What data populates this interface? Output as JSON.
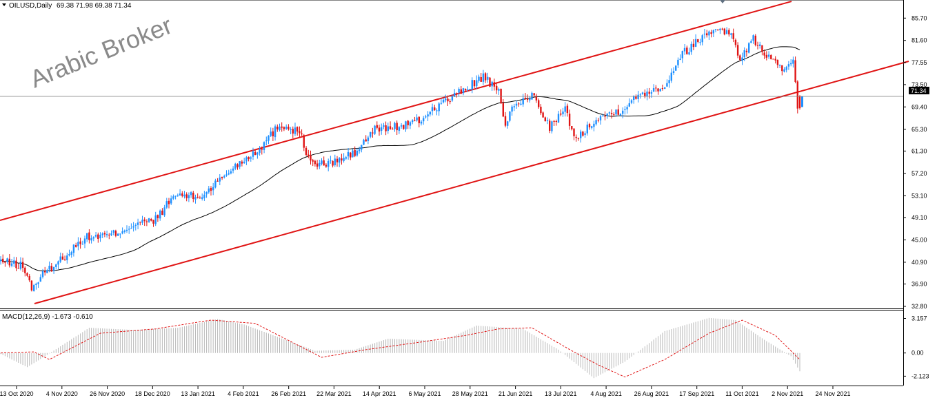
{
  "chart_data": [
    {
      "type": "candlestick",
      "symbol": "OILUSD,Daily",
      "ohlc_header": "69.38 71.98 69.38 71.34",
      "watermark": "Arabic Broker",
      "ylim": [
        32.8,
        87.0
      ],
      "y_ticks": [
        "85.70",
        "81.60",
        "77.55",
        "73.50",
        "69.40",
        "65.30",
        "61.30",
        "57.20",
        "53.10",
        "49.10",
        "45.00",
        "40.90",
        "36.90",
        "32.80"
      ],
      "x_ticks": [
        "13 Oct 2020",
        "4 Nov 2020",
        "26 Nov 2020",
        "18 Dec 2020",
        "13 Jan 2021",
        "4 Feb 2021",
        "26 Feb 2021",
        "22 Mar 2021",
        "14 Apr 2021",
        "6 May 2021",
        "28 May 2021",
        "21 Jun 2021",
        "13 Jul 2021",
        "4 Aug 2021",
        "26 Aug 2021",
        "17 Sep 2021",
        "11 Oct 2021",
        "2 Nov 2021",
        "24 Nov 2021"
      ],
      "current_price": "71.34",
      "current_price_value": 71.34,
      "close_path": [
        [
          0,
          41.1
        ],
        [
          10,
          40.2
        ],
        [
          14,
          36.2
        ],
        [
          20,
          39.0
        ],
        [
          25,
          40.6
        ],
        [
          38,
          45.4
        ],
        [
          50,
          45.9
        ],
        [
          62,
          48.1
        ],
        [
          69,
          48.4
        ],
        [
          79,
          53.3
        ],
        [
          90,
          52.8
        ],
        [
          106,
          58.6
        ],
        [
          117,
          61.8
        ],
        [
          126,
          66.2
        ],
        [
          135,
          64.8
        ],
        [
          140,
          59.0
        ],
        [
          148,
          58.9
        ],
        [
          160,
          60.9
        ],
        [
          169,
          65.3
        ],
        [
          180,
          65.8
        ],
        [
          189,
          66.8
        ],
        [
          196,
          69.3
        ],
        [
          205,
          71.4
        ],
        [
          218,
          75.0
        ],
        [
          225,
          71.9
        ],
        [
          228,
          66.5
        ],
        [
          232,
          69.4
        ],
        [
          240,
          71.7
        ],
        [
          248,
          65.8
        ],
        [
          255,
          68.8
        ],
        [
          260,
          63.3
        ],
        [
          268,
          67.1
        ],
        [
          280,
          68.9
        ],
        [
          290,
          72.0
        ],
        [
          300,
          73.3
        ],
        [
          307,
          78.8
        ],
        [
          318,
          82.6
        ],
        [
          325,
          84.1
        ],
        [
          330,
          82.5
        ],
        [
          334,
          78.3
        ],
        [
          340,
          81.8
        ],
        [
          346,
          79.0
        ],
        [
          350,
          77.3
        ],
        [
          355,
          76.2
        ],
        [
          358,
          77.6
        ],
        [
          360,
          69.1
        ],
        [
          361,
          71.34
        ]
      ],
      "macd": {
        "label": "MACD(12,26,9) -1.673 -0.610",
        "ylim": [
          -2.6,
          3.5
        ],
        "y_ticks": [
          "3.157",
          "0.00",
          "-2.123"
        ],
        "hist_path": [
          [
            0,
            -0.1
          ],
          [
            12,
            -1.3
          ],
          [
            20,
            -0.3
          ],
          [
            40,
            2.3
          ],
          [
            60,
            2.1
          ],
          [
            80,
            2.3
          ],
          [
            98,
            3.1
          ],
          [
            110,
            2.6
          ],
          [
            142,
            0.2
          ],
          [
            160,
            0.3
          ],
          [
            175,
            1.3
          ],
          [
            200,
            1.1
          ],
          [
            215,
            2.5
          ],
          [
            236,
            2.2
          ],
          [
            252,
            0.3
          ],
          [
            268,
            -2.3
          ],
          [
            282,
            -0.8
          ],
          [
            300,
            2.0
          ],
          [
            320,
            3.2
          ],
          [
            332,
            3.0
          ],
          [
            345,
            1.2
          ],
          [
            357,
            -0.3
          ],
          [
            361,
            -1.673
          ]
        ],
        "signal_path": [
          [
            0,
            0.0
          ],
          [
            15,
            0.1
          ],
          [
            22,
            -0.6
          ],
          [
            45,
            1.8
          ],
          [
            70,
            2.2
          ],
          [
            95,
            3.0
          ],
          [
            115,
            2.7
          ],
          [
            145,
            -0.4
          ],
          [
            165,
            0.3
          ],
          [
            190,
            1.0
          ],
          [
            210,
            1.6
          ],
          [
            225,
            2.2
          ],
          [
            240,
            2.3
          ],
          [
            258,
            0.2
          ],
          [
            270,
            -1.1
          ],
          [
            282,
            -2.2
          ],
          [
            300,
            -0.6
          ],
          [
            320,
            1.8
          ],
          [
            335,
            3.0
          ],
          [
            350,
            1.6
          ],
          [
            361,
            -0.61
          ]
        ]
      }
    }
  ]
}
